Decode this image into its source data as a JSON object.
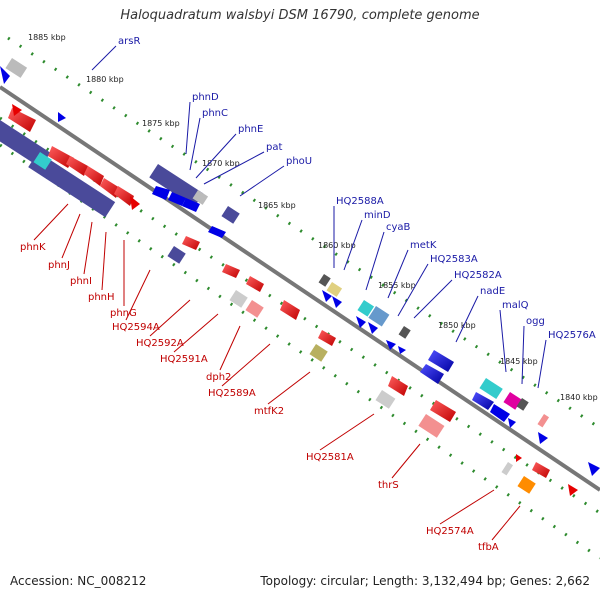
{
  "title": "Haloquadratum walsbyi DSM 16790, complete genome",
  "accession": "Accession: NC_008212",
  "topology": "Topology: circular; Length: 3,132,494 bp; Genes: 2,662",
  "ticks": [
    "1885 kbp",
    "1880 kbp",
    "1875 kbp",
    "1870 kbp",
    "1865 kbp",
    "1860 kbp",
    "1855 kbp",
    "1850 kbp",
    "1845 kbp",
    "1840 kbp"
  ],
  "top_labels": [
    "arsR",
    "phnD",
    "phnC",
    "phnE",
    "pat",
    "phoU",
    "HQ2588A",
    "minD",
    "cyaB",
    "metK",
    "HQ2583A",
    "HQ2582A",
    "nadE",
    "malQ",
    "ogg",
    "HQ2576A"
  ],
  "bottom_labels": [
    "phnK",
    "phnJ",
    "phnI",
    "phnH",
    "phnG",
    "HQ2594A",
    "HQ2592A",
    "HQ2591A",
    "dph2",
    "HQ2589A",
    "mtfK2",
    "HQ2581A",
    "thrS",
    "HQ2574A",
    "tfbA"
  ],
  "colors": {
    "forward": "#e60000",
    "reverse": "#0000e6",
    "top_label": "#1a1aa6",
    "bottom_label": "#c00000",
    "track_dot": "#2e8b2e",
    "axis": "#888888"
  }
}
